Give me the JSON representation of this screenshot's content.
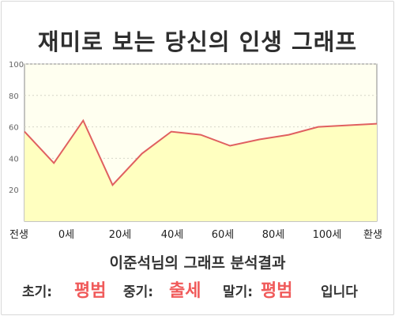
{
  "title": "재미로 보는 당신의 인생 그래프",
  "summary": {
    "text": "이준석님의 그래프 분석결과"
  },
  "result": {
    "early_label": "초기:",
    "early_value": "평범",
    "mid_label": "중기:",
    "mid_value": "출세",
    "late_label": "말기:",
    "late_value": "평범",
    "suffix": "입니다"
  },
  "colors": {
    "line": "#e06060",
    "fill": "#ffffc0",
    "highlight": "#f05a5a",
    "plot_bg": "#fffff0"
  },
  "chart_data": {
    "type": "area",
    "title": "",
    "xlabel": "",
    "ylabel": "",
    "ylim": [
      0,
      100
    ],
    "grid": true,
    "y_ticks": [
      "100",
      "80",
      "60",
      "40",
      "20"
    ],
    "x_tick_labels": [
      "전생",
      "0세",
      "20세",
      "40세",
      "60세",
      "80세",
      "100세",
      "환생"
    ],
    "series": [
      {
        "values": [
          57,
          37,
          64,
          23,
          43,
          57,
          55,
          48,
          52,
          55,
          60,
          61,
          62
        ]
      }
    ]
  }
}
